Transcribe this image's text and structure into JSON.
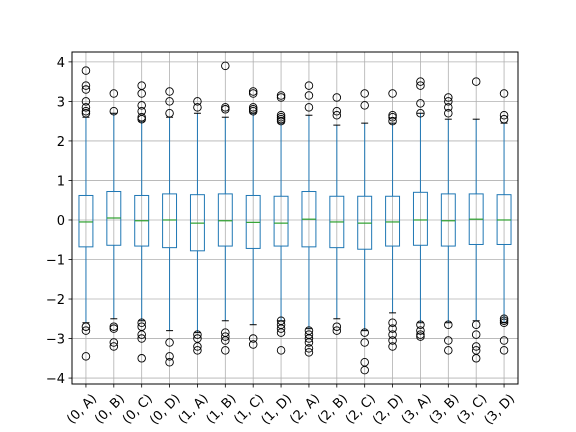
{
  "chart_data": {
    "type": "box",
    "title": "",
    "xlabel": "",
    "ylabel": "",
    "ylim": [
      -4.15,
      4.25
    ],
    "y_ticks": [
      {
        "value": -4,
        "label": "−4"
      },
      {
        "value": -3,
        "label": "−3"
      },
      {
        "value": -2,
        "label": "−2"
      },
      {
        "value": -1,
        "label": "−1"
      },
      {
        "value": 0,
        "label": "0"
      },
      {
        "value": 1,
        "label": "1"
      },
      {
        "value": 2,
        "label": "2"
      },
      {
        "value": 3,
        "label": "3"
      },
      {
        "value": 4,
        "label": "4"
      }
    ],
    "grid": true,
    "x_tick_rotation": 45,
    "colors": {
      "box": "#1f77b4",
      "median": "#2ca02c",
      "whisker": "#1f77b4",
      "cap": "#000000",
      "flier": "#000000",
      "grid": "#b0b0b0"
    },
    "categories": [
      "(0, A)",
      "(0, B)",
      "(0, C)",
      "(0, D)",
      "(1, A)",
      "(1, B)",
      "(1, C)",
      "(1, D)",
      "(2, A)",
      "(2, B)",
      "(2, C)",
      "(2, D)",
      "(3, A)",
      "(3, B)",
      "(3, C)",
      "(3, D)"
    ],
    "boxes": [
      {
        "q1": -0.68,
        "median": -0.05,
        "q3": 0.62,
        "whislo": -2.6,
        "whishi": 2.6,
        "fliers": [
          3.78,
          3.4,
          3.3,
          3.0,
          2.85,
          2.75,
          2.7,
          -2.7,
          -2.8,
          -3.45
        ]
      },
      {
        "q1": -0.64,
        "median": 0.05,
        "q3": 0.72,
        "whislo": -2.5,
        "whishi": 2.7,
        "fliers": [
          3.2,
          2.75,
          -2.7,
          -2.75,
          -3.1,
          -3.2
        ]
      },
      {
        "q1": -0.66,
        "median": -0.02,
        "q3": 0.62,
        "whislo": -2.55,
        "whishi": 2.5,
        "fliers": [
          3.4,
          3.2,
          2.9,
          2.75,
          2.6,
          2.55,
          -2.6,
          -2.7,
          -2.9,
          -3.0,
          -3.5
        ]
      },
      {
        "q1": -0.7,
        "median": 0.0,
        "q3": 0.66,
        "whislo": -2.8,
        "whishi": 2.6,
        "fliers": [
          3.25,
          3.0,
          2.7,
          -3.1,
          -3.45,
          -3.6
        ]
      },
      {
        "q1": -0.78,
        "median": -0.08,
        "q3": 0.64,
        "whislo": -2.85,
        "whishi": 2.7,
        "fliers": [
          3.0,
          2.85,
          -2.9,
          -3.0,
          -3.2,
          -3.3
        ]
      },
      {
        "q1": -0.66,
        "median": -0.02,
        "q3": 0.66,
        "whislo": -2.55,
        "whishi": 2.6,
        "fliers": [
          3.9,
          2.85,
          2.8,
          -2.85,
          -2.95,
          -3.05,
          -3.3
        ]
      },
      {
        "q1": -0.72,
        "median": -0.06,
        "q3": 0.62,
        "whislo": -2.65,
        "whishi": 2.7,
        "fliers": [
          3.25,
          3.2,
          2.85,
          2.8,
          2.75,
          -3.0,
          -3.15
        ]
      },
      {
        "q1": -0.66,
        "median": -0.08,
        "q3": 0.6,
        "whislo": -2.55,
        "whishi": 2.45,
        "fliers": [
          3.15,
          3.1,
          2.65,
          2.6,
          2.55,
          2.5,
          -2.55,
          -2.65,
          -2.75,
          -2.85,
          -3.3
        ]
      },
      {
        "q1": -0.68,
        "median": 0.02,
        "q3": 0.72,
        "whislo": -2.75,
        "whishi": 2.65,
        "fliers": [
          3.4,
          3.15,
          2.85,
          -2.8,
          -2.9,
          -3.0,
          -3.1,
          -3.25,
          -3.35
        ]
      },
      {
        "q1": -0.7,
        "median": -0.05,
        "q3": 0.6,
        "whislo": -2.5,
        "whishi": 2.4,
        "fliers": [
          3.1,
          2.75,
          2.65,
          -2.7,
          -2.8
        ]
      },
      {
        "q1": -0.74,
        "median": -0.08,
        "q3": 0.6,
        "whislo": -2.8,
        "whishi": 2.45,
        "fliers": [
          3.2,
          2.9,
          -2.85,
          -3.1,
          -3.6,
          -3.8
        ]
      },
      {
        "q1": -0.66,
        "median": -0.05,
        "q3": 0.6,
        "whislo": -2.35,
        "whishi": 2.45,
        "fliers": [
          3.2,
          2.65,
          2.6,
          2.5,
          -2.6,
          -2.75,
          -2.9,
          -3.05,
          -3.2
        ]
      },
      {
        "q1": -0.64,
        "median": 0.0,
        "q3": 0.7,
        "whislo": -2.6,
        "whishi": 2.7,
        "fliers": [
          3.5,
          3.4,
          2.95,
          2.7,
          -2.65,
          -2.8,
          -2.9,
          -2.95
        ]
      },
      {
        "q1": -0.66,
        "median": -0.02,
        "q3": 0.66,
        "whislo": -2.6,
        "whishi": 2.55,
        "fliers": [
          3.1,
          3.0,
          2.85,
          2.7,
          -2.65,
          -3.05,
          -3.3
        ]
      },
      {
        "q1": -0.62,
        "median": 0.02,
        "q3": 0.66,
        "whislo": -2.55,
        "whishi": 2.55,
        "fliers": [
          3.5,
          -2.65,
          -2.9,
          -3.2,
          -3.3,
          -3.5
        ]
      },
      {
        "q1": -0.62,
        "median": 0.0,
        "q3": 0.64,
        "whislo": -2.6,
        "whishi": 2.45,
        "fliers": [
          3.2,
          2.65,
          2.55,
          -2.5,
          -2.55,
          -2.6,
          -3.05,
          -3.3
        ]
      }
    ]
  }
}
